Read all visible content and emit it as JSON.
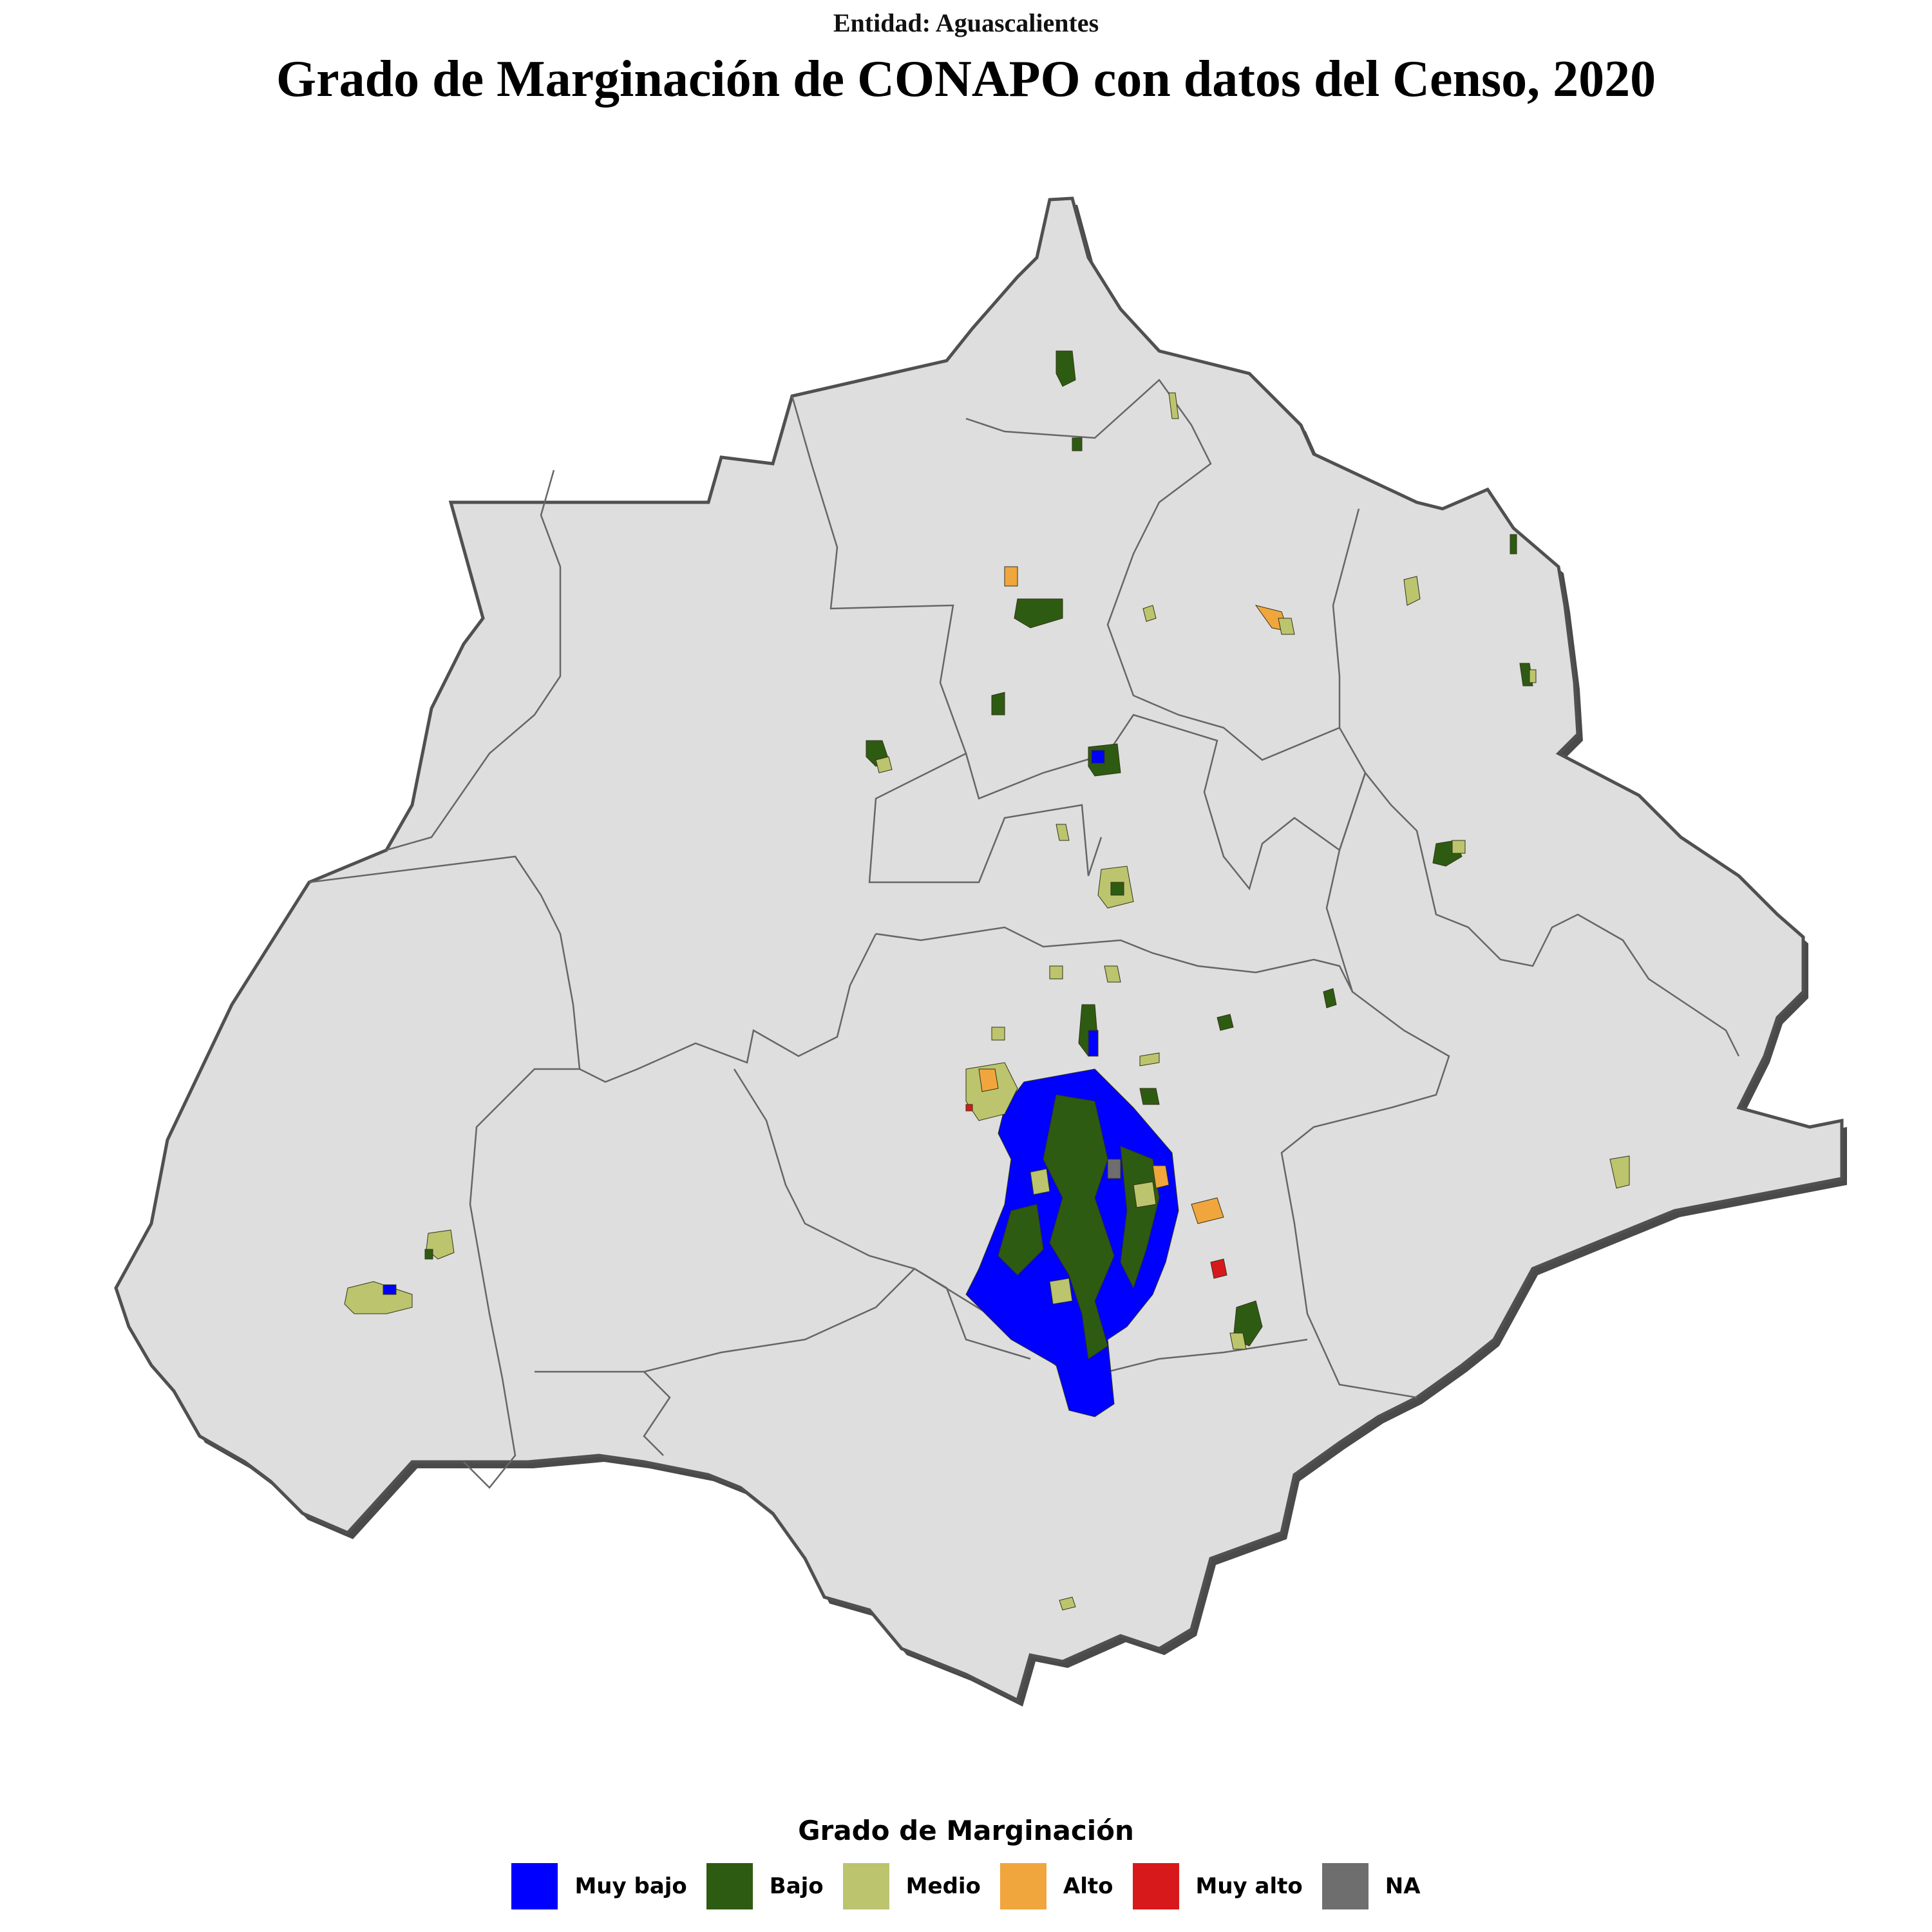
{
  "header": {
    "subtitle": "Entidad: Aguascalientes",
    "title": "Grado de Marginación de CONAPO con datos del Censo, 2020"
  },
  "legend": {
    "title": "Grado de Marginación",
    "items": [
      {
        "label": "Muy bajo",
        "color": "#0000ff"
      },
      {
        "label": "Bajo",
        "color": "#2e5b12"
      },
      {
        "label": "Medio",
        "color": "#bcc46d"
      },
      {
        "label": "Alto",
        "color": "#f0a63c"
      },
      {
        "label": "Muy alto",
        "color": "#d7191c"
      },
      {
        "label": "NA",
        "color": "#6e6e6e"
      }
    ]
  },
  "map": {
    "state_fill": "#dedede",
    "border_color": "#505050",
    "shadow_color": "#4a4a4a"
  }
}
